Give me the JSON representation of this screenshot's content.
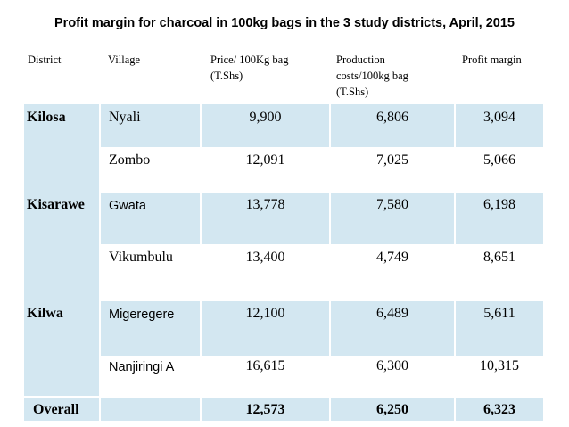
{
  "title": "Profit margin for charcoal in 100kg bags in the 3 study districts, April, 2015",
  "headers": {
    "district": "District",
    "village": "Village",
    "price_l1": "Price/ 100Kg bag",
    "price_l2": "(T.Shs)",
    "prod_l1": "Production",
    "prod_l2": "costs/100kg bag",
    "prod_l3": "(T.Shs)",
    "profit": "Profit margin"
  },
  "rows": [
    {
      "district": "Kilosa",
      "village": "Nyali",
      "price": "9,900",
      "prod": "6,806",
      "profit": "3,094"
    },
    {
      "district": "",
      "village": "Zombo",
      "price": "12,091",
      "prod": "7,025",
      "profit": "5,066"
    },
    {
      "district": "Kisarawe",
      "village": "Gwata",
      "price": "13,778",
      "prod": "7,580",
      "profit": "6,198"
    },
    {
      "district": "",
      "village": "Vikumbulu",
      "price": "13,400",
      "prod": "4,749",
      "profit": "8,651"
    },
    {
      "district": "Kilwa",
      "village": "Migeregere",
      "price": "12,100",
      "prod": "6,489",
      "profit": "5,611"
    },
    {
      "district": "",
      "village": "Nanjiringi A",
      "price": "16,615",
      "prod": "6,300",
      "profit": "10,315"
    }
  ],
  "overall": {
    "label": "Overall",
    "price": "12,573",
    "prod": "6,250",
    "profit": "6,323"
  },
  "colors": {
    "band": "#d3e7f1",
    "text": "#000000"
  }
}
